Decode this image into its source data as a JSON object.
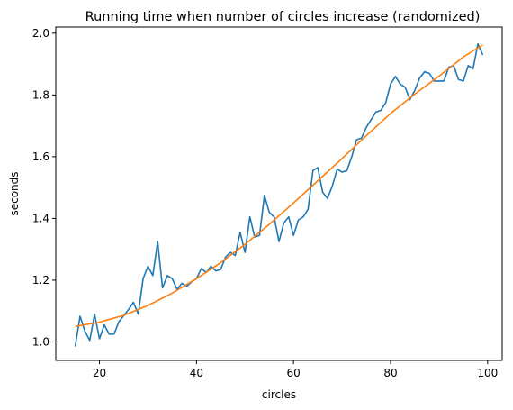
{
  "chart_data": {
    "type": "line",
    "title": "Running time when number of circles increase (randomized)",
    "xlabel": "circles",
    "ylabel": "seconds",
    "xlim": [
      11,
      103
    ],
    "ylim": [
      0.94,
      2.02
    ],
    "xticks": [
      20,
      40,
      60,
      80,
      100
    ],
    "yticks": [
      1.0,
      1.2,
      1.4,
      1.6,
      1.8,
      2.0
    ],
    "xtick_labels": [
      "20",
      "40",
      "60",
      "80",
      "100"
    ],
    "ytick_labels": [
      "1.0",
      "1.2",
      "1.4",
      "1.6",
      "1.8",
      "2.0"
    ],
    "grid": false,
    "legend": "none",
    "series": [
      {
        "color": "#1f77b4",
        "x": [
          15,
          16,
          17,
          18,
          19,
          20,
          21,
          22,
          23,
          24,
          25,
          26,
          27,
          28,
          29,
          30,
          31,
          32,
          33,
          34,
          35,
          36,
          37,
          38,
          39,
          40,
          41,
          42,
          43,
          44,
          45,
          46,
          47,
          48,
          49,
          50,
          51,
          52,
          53,
          54,
          55,
          56,
          57,
          58,
          59,
          60,
          61,
          62,
          63,
          64,
          65,
          66,
          67,
          68,
          69,
          70,
          71,
          72,
          73,
          74,
          75,
          76,
          77,
          78,
          79,
          80,
          81,
          82,
          83,
          84,
          85,
          86,
          87,
          88,
          89,
          90,
          91,
          92,
          93,
          94,
          95,
          96,
          97,
          98,
          99
        ],
        "y": [
          0.985,
          1.083,
          1.035,
          1.005,
          1.09,
          1.01,
          1.055,
          1.025,
          1.025,
          1.065,
          1.085,
          1.105,
          1.128,
          1.09,
          1.205,
          1.245,
          1.215,
          1.325,
          1.175,
          1.215,
          1.205,
          1.17,
          1.19,
          1.18,
          1.195,
          1.205,
          1.238,
          1.225,
          1.245,
          1.23,
          1.235,
          1.275,
          1.29,
          1.28,
          1.355,
          1.29,
          1.405,
          1.34,
          1.345,
          1.475,
          1.42,
          1.405,
          1.325,
          1.385,
          1.405,
          1.345,
          1.395,
          1.405,
          1.43,
          1.555,
          1.565,
          1.485,
          1.465,
          1.505,
          1.56,
          1.55,
          1.555,
          1.6,
          1.655,
          1.66,
          1.695,
          1.72,
          1.745,
          1.75,
          1.775,
          1.835,
          1.86,
          1.835,
          1.825,
          1.785,
          1.815,
          1.855,
          1.875,
          1.87,
          1.845,
          1.845,
          1.845,
          1.89,
          1.895,
          1.85,
          1.845,
          1.895,
          1.885,
          1.965,
          1.93
        ]
      },
      {
        "color": "#ff7f0e",
        "x": [
          15,
          20,
          25,
          30,
          35,
          40,
          45,
          50,
          55,
          60,
          65,
          70,
          75,
          80,
          85,
          90,
          95,
          99
        ],
        "y": [
          1.05,
          1.064,
          1.086,
          1.118,
          1.158,
          1.205,
          1.257,
          1.316,
          1.381,
          1.45,
          1.522,
          1.594,
          1.668,
          1.74,
          1.803,
          1.861,
          1.923,
          1.962
        ]
      }
    ]
  }
}
